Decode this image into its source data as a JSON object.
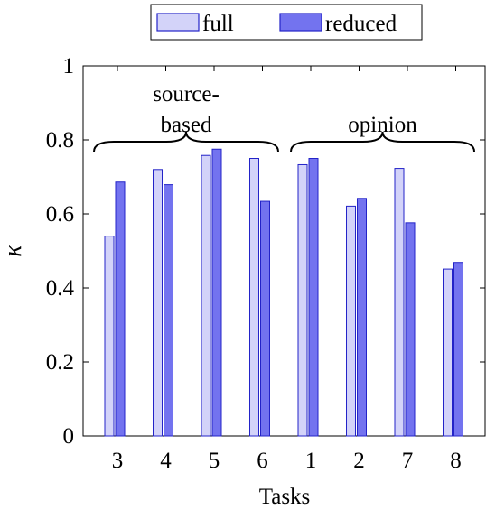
{
  "chart_data": {
    "type": "bar",
    "categories": [
      "3",
      "4",
      "5",
      "6",
      "1",
      "2",
      "7",
      "8"
    ],
    "series": [
      {
        "name": "full",
        "values": [
          0.54,
          0.72,
          0.758,
          0.75,
          0.733,
          0.621,
          0.723,
          0.451
        ],
        "color": "#d3d3f9"
      },
      {
        "name": "reduced",
        "values": [
          0.686,
          0.679,
          0.775,
          0.634,
          0.75,
          0.642,
          0.576,
          0.469
        ],
        "color": "#7373ef"
      }
    ],
    "edge_color": "#2323c8",
    "xlabel": "Tasks",
    "ylabel": "κ",
    "ylim": [
      0,
      1
    ],
    "yticks": [
      0,
      0.2,
      0.4,
      0.6,
      0.8,
      1
    ],
    "ytick_labels": [
      "0",
      "0.2",
      "0.4",
      "0.6",
      "0.8",
      "1"
    ],
    "grid": false,
    "legend_position": "top-center",
    "groups": [
      {
        "label_lines": [
          "source-",
          "based"
        ],
        "from": "3",
        "to": "6"
      },
      {
        "label_lines": [
          "opinion"
        ],
        "from": "1",
        "to": "8"
      }
    ]
  }
}
